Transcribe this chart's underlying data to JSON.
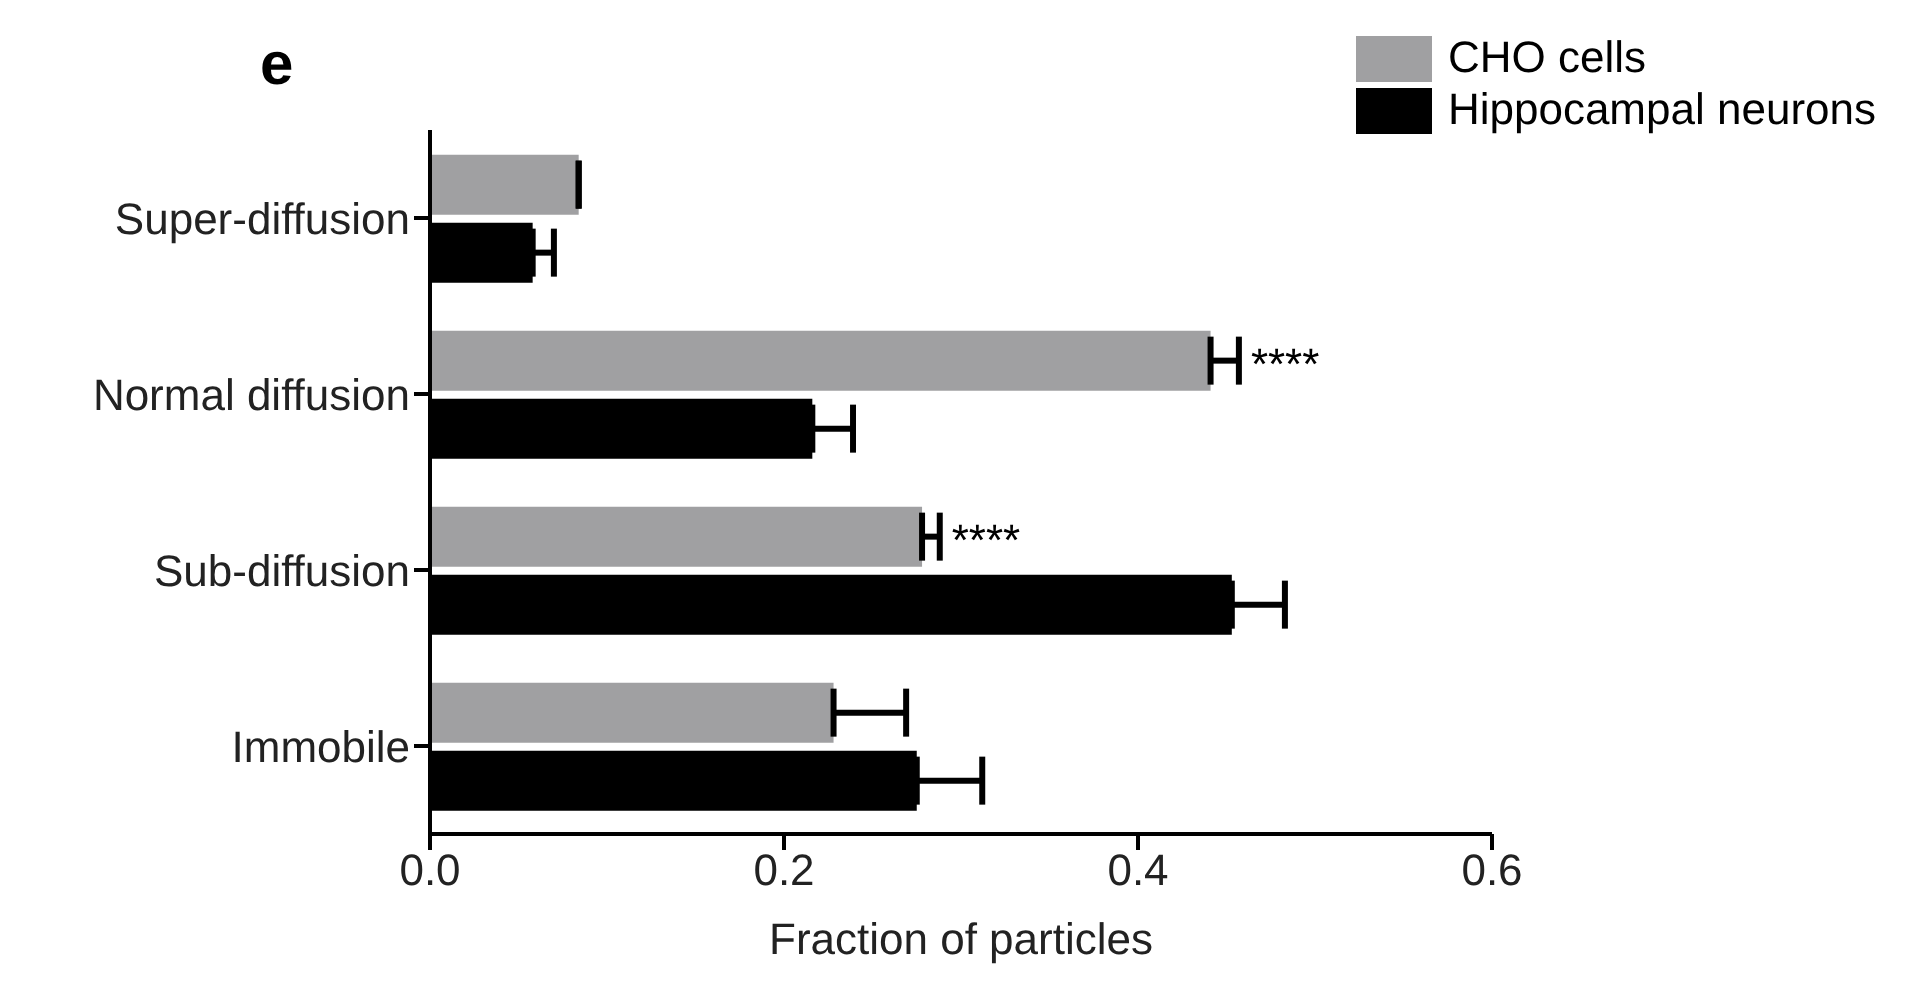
{
  "chart_data": {
    "type": "bar",
    "orientation": "horizontal",
    "title": "e",
    "xlabel": "Fraction of particles",
    "categories": [
      "Super-diffusion",
      "Normal diffusion",
      "Sub-diffusion",
      "Immobile"
    ],
    "series": [
      {
        "name": "CHO cells",
        "color": "#a0a0a2",
        "values": [
          0.084,
          0.441,
          0.278,
          0.228
        ],
        "errors": [
          null,
          [
            0.441,
            0.457
          ],
          [
            0.278,
            0.288
          ],
          [
            0.228,
            0.269
          ]
        ]
      },
      {
        "name": "Hippocampal neurons",
        "color": "#000000",
        "values": [
          0.058,
          0.216,
          0.453,
          0.275
        ],
        "errors": [
          [
            0.058,
            0.07
          ],
          [
            0.216,
            0.239
          ],
          [
            0.453,
            0.483
          ],
          [
            0.275,
            0.312
          ]
        ]
      }
    ],
    "xlim": [
      0,
      0.6
    ],
    "xticks": [
      {
        "value": 0,
        "label": "0.0"
      },
      0.2,
      0.4,
      0.6
    ],
    "annotations": [
      {
        "text": "****",
        "x": 0.457,
        "y": "Normal diffusion"
      },
      {
        "text": "****",
        "x": 0.288,
        "y": "Sub-diffusion"
      }
    ],
    "legend": "top right",
    "grid": false
  }
}
